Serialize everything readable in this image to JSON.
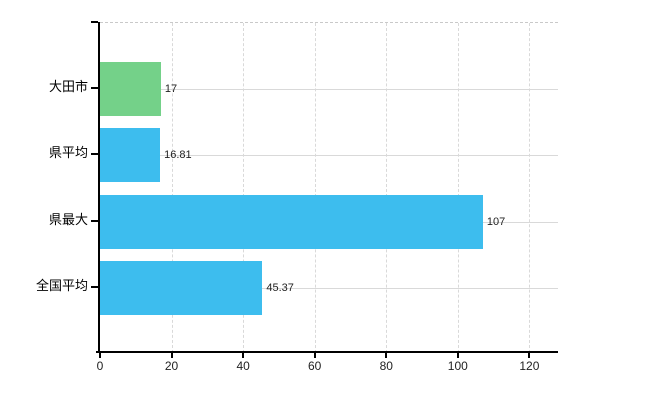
{
  "chart_data": {
    "type": "bar",
    "orientation": "horizontal",
    "title": "",
    "xlabel": "",
    "ylabel": "",
    "categories": [
      "大田市",
      "県平均",
      "県最大",
      "全国平均"
    ],
    "values": [
      17,
      16.81,
      107,
      45.37
    ],
    "value_labels": [
      "17",
      "16.81",
      "107",
      "45.37"
    ],
    "bar_colors": [
      "#74d189",
      "#3dbdee",
      "#3dbdee",
      "#3dbdee"
    ],
    "x_tick_labels": [
      "0",
      "20",
      "40",
      "60",
      "80",
      "100",
      "120"
    ],
    "x_tick_values": [
      0,
      20,
      40,
      60,
      80,
      100,
      120
    ],
    "xlim": [
      0,
      128
    ],
    "grid": true,
    "legend": false,
    "colors": {
      "background": "#ffffff",
      "axis": "#000000",
      "gridline": "#d9d9d9",
      "plot_border": "#c9c9c9",
      "text": "#222222"
    }
  }
}
